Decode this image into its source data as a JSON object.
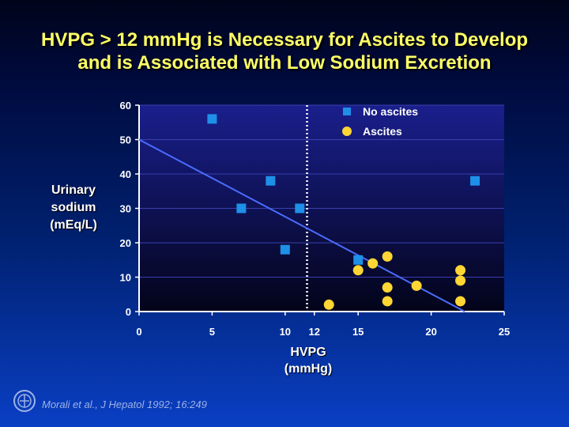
{
  "title": {
    "line1": "HVPG > 12 mmHg is Necessary for Ascites to Develop",
    "line2": "and is Associated with Low Sodium Excretion"
  },
  "ylabel": {
    "line1": "Urinary",
    "line2": "sodium",
    "line3": "(mEq/L)"
  },
  "xlabel": {
    "line1": "HVPG",
    "line2": "(mmHg)"
  },
  "citation": "Morali et al., J Hepatol 1992; 16:249",
  "colors": {
    "no_ascites": "#1e90e8",
    "ascites": "#ffd633",
    "trend": "#4a6cff",
    "threshold": "#ffffff",
    "axis_text": "#ffffff",
    "title": "#ffff66"
  },
  "chart_data": {
    "type": "scatter",
    "xlim": [
      0,
      25
    ],
    "ylim": [
      0,
      60
    ],
    "x_ticks": [
      "0",
      "5",
      "10",
      "12",
      "15",
      "20",
      "25"
    ],
    "x_tick_values": [
      0,
      5,
      10,
      12,
      15,
      20,
      25
    ],
    "y_ticks": [
      "0",
      "10",
      "20",
      "30",
      "40",
      "50",
      "60"
    ],
    "y_tick_values": [
      0,
      10,
      20,
      30,
      40,
      50,
      60
    ],
    "grid": true,
    "legend_position": "top-right",
    "threshold_x": 11.5,
    "trendline": {
      "x": [
        0,
        22.3
      ],
      "y": [
        50,
        0
      ]
    },
    "series": [
      {
        "name": "No ascites",
        "marker": "square",
        "points": [
          {
            "x": 5,
            "y": 56
          },
          {
            "x": 7,
            "y": 30
          },
          {
            "x": 9,
            "y": 38
          },
          {
            "x": 10,
            "y": 18
          },
          {
            "x": 11,
            "y": 30
          },
          {
            "x": 15,
            "y": 15
          },
          {
            "x": 23,
            "y": 38
          }
        ]
      },
      {
        "name": "Ascites",
        "marker": "circle",
        "points": [
          {
            "x": 13,
            "y": 2
          },
          {
            "x": 15,
            "y": 12
          },
          {
            "x": 16,
            "y": 14
          },
          {
            "x": 17,
            "y": 16
          },
          {
            "x": 17,
            "y": 7
          },
          {
            "x": 17,
            "y": 3
          },
          {
            "x": 19,
            "y": 7.5
          },
          {
            "x": 22,
            "y": 12
          },
          {
            "x": 22,
            "y": 9
          },
          {
            "x": 22,
            "y": 3
          }
        ]
      }
    ]
  }
}
